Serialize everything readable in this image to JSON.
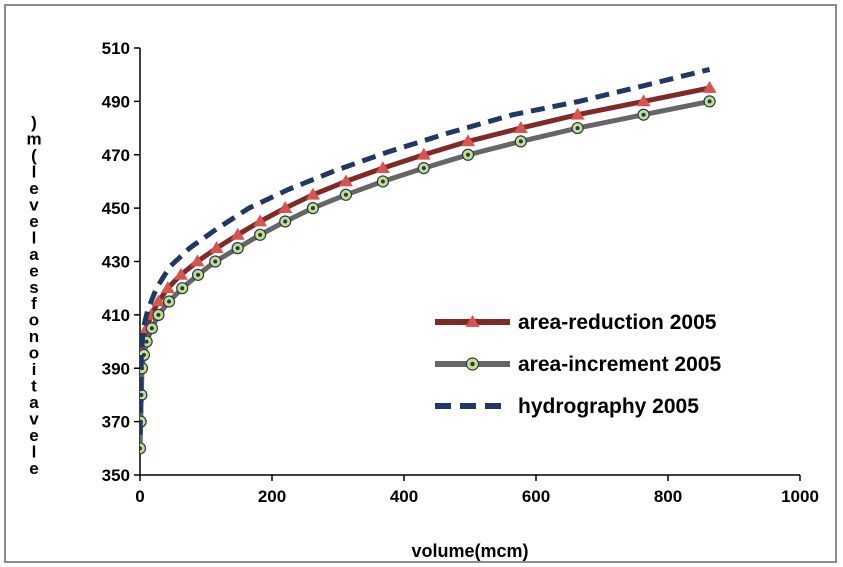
{
  "chart_data": {
    "type": "line",
    "title": "",
    "xlabel": "volume(mcm)",
    "ylabel": "elevation of sea level (m)",
    "xlim": [
      0,
      1000
    ],
    "ylim": [
      350,
      510
    ],
    "xticks": [
      0,
      200,
      400,
      600,
      800,
      1000
    ],
    "yticks": [
      350,
      370,
      390,
      410,
      430,
      450,
      470,
      490,
      510
    ],
    "grid": false,
    "legend_position": "bottom-right",
    "series": [
      {
        "name": "area-reduction 2005",
        "color": "#7f2a26",
        "marker": "triangle",
        "marker_color": "#d9534f",
        "line": "solid",
        "points": [
          [
            0,
            390
          ],
          [
            2,
            395
          ],
          [
            5,
            400
          ],
          [
            10,
            405
          ],
          [
            17,
            410
          ],
          [
            28,
            415
          ],
          [
            42,
            420
          ],
          [
            62,
            425
          ],
          [
            87,
            430
          ],
          [
            116,
            435
          ],
          [
            148,
            440
          ],
          [
            182,
            445
          ],
          [
            220,
            450
          ],
          [
            262,
            455
          ],
          [
            312,
            460
          ],
          [
            368,
            465
          ],
          [
            430,
            470
          ],
          [
            497,
            475
          ],
          [
            577,
            480
          ],
          [
            663,
            485
          ],
          [
            763,
            490
          ],
          [
            863,
            495
          ]
        ]
      },
      {
        "name": "area-increment 2005",
        "color": "#666666",
        "marker": "circle",
        "marker_color": "#c9e07a",
        "line": "solid",
        "points": [
          [
            0,
            360
          ],
          [
            1,
            370
          ],
          [
            2,
            380
          ],
          [
            3,
            390
          ],
          [
            6,
            395
          ],
          [
            10,
            400
          ],
          [
            18,
            405
          ],
          [
            28,
            410
          ],
          [
            44,
            415
          ],
          [
            64,
            420
          ],
          [
            88,
            425
          ],
          [
            114,
            430
          ],
          [
            148,
            435
          ],
          [
            182,
            440
          ],
          [
            220,
            445
          ],
          [
            262,
            450
          ],
          [
            312,
            455
          ],
          [
            368,
            460
          ],
          [
            430,
            465
          ],
          [
            497,
            470
          ],
          [
            577,
            475
          ],
          [
            663,
            480
          ],
          [
            763,
            485
          ],
          [
            863,
            490
          ]
        ]
      },
      {
        "name": "hydrography 2005",
        "color": "#1f3864",
        "marker": "none",
        "line": "dashed",
        "points": [
          [
            0,
            365
          ],
          [
            2,
            395
          ],
          [
            5,
            405
          ],
          [
            12,
            412
          ],
          [
            25,
            420
          ],
          [
            45,
            428
          ],
          [
            75,
            435
          ],
          [
            115,
            442
          ],
          [
            165,
            450
          ],
          [
            225,
            457
          ],
          [
            295,
            464
          ],
          [
            375,
            471
          ],
          [
            465,
            478
          ],
          [
            565,
            485
          ],
          [
            665,
            490
          ],
          [
            765,
            496
          ],
          [
            863,
            502
          ]
        ]
      }
    ]
  }
}
